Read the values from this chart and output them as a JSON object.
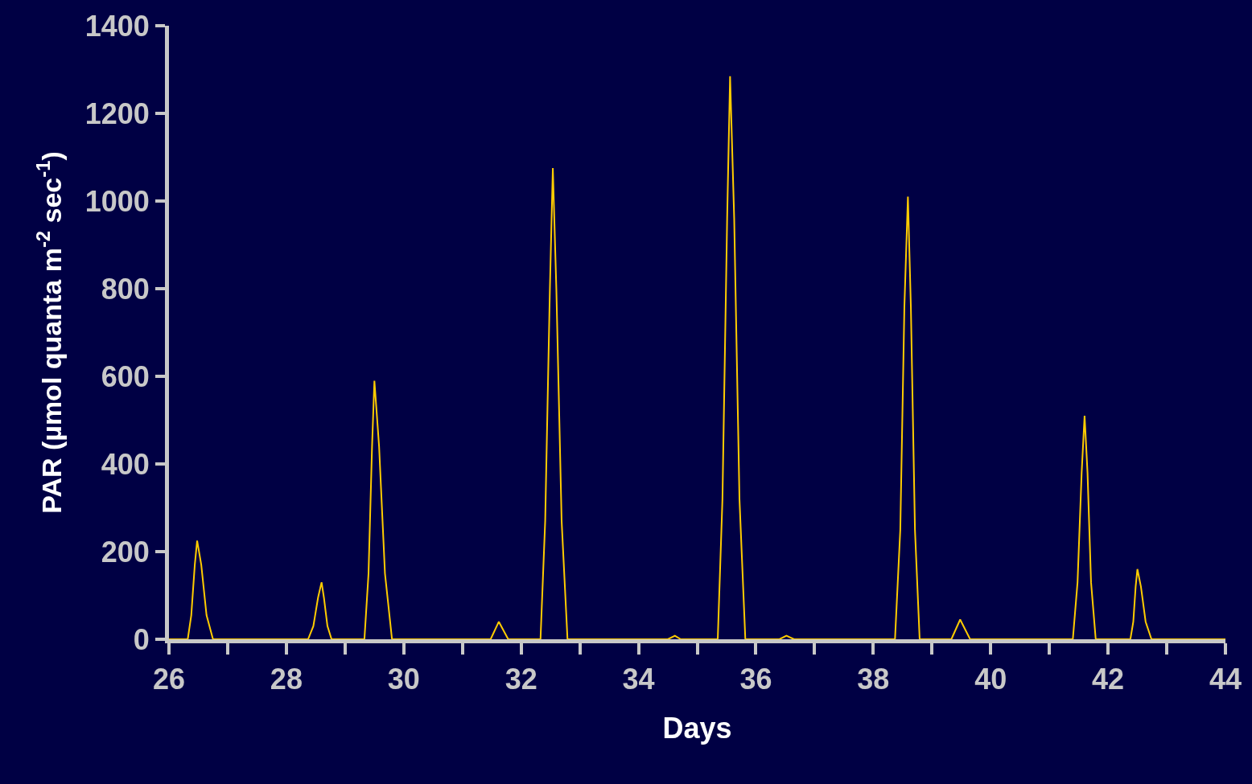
{
  "chart_data": {
    "type": "line",
    "xlabel": "Days",
    "ylabel": "PAR (µmol quanta m$^{-2}$ sec$^{-1}$)",
    "xlim": [
      26,
      44
    ],
    "ylim": [
      0,
      1400
    ],
    "xticks": [
      26,
      {
        "value": 27,
        "label": null
      },
      28,
      {
        "value": 29,
        "label": null
      },
      30,
      {
        "value": 31,
        "label": null
      },
      32,
      {
        "value": 33,
        "label": null
      },
      34,
      {
        "value": 35,
        "label": null
      },
      36,
      {
        "value": 37,
        "label": null
      },
      38,
      {
        "value": 39,
        "label": null
      },
      40,
      {
        "value": 41,
        "label": null
      },
      42,
      {
        "value": 43,
        "label": null
      },
      44
    ],
    "yticks": [
      0,
      200,
      400,
      600,
      800,
      1000,
      1200,
      1400
    ],
    "grid": false,
    "legend": false,
    "marker": "none",
    "line_style": "solid",
    "series": [
      {
        "color": "#ffcc00",
        "x": [
          26,
          26.32,
          26.38,
          26.44,
          26.48,
          26.55,
          26.64,
          26.75,
          28.37,
          28.46,
          28.54,
          28.6,
          28.64,
          28.7,
          28.77,
          29.33,
          29.4,
          29.46,
          29.5,
          29.58,
          29.68,
          29.8,
          31.48,
          31.62,
          31.78,
          32.33,
          32.41,
          32.49,
          32.54,
          32.6,
          32.69,
          32.79,
          34.5,
          34.62,
          34.72,
          35.35,
          35.43,
          35.51,
          35.56,
          35.63,
          35.72,
          35.82,
          36.4,
          36.52,
          36.65,
          38.37,
          38.46,
          38.53,
          38.59,
          38.64,
          38.71,
          38.79,
          39.33,
          39.48,
          39.65,
          41.4,
          41.48,
          41.55,
          41.6,
          41.65,
          41.71,
          41.79,
          42.38,
          42.43,
          42.47,
          42.5,
          42.56,
          42.64,
          42.74,
          44
        ],
        "values": [
          0,
          0,
          55,
          170,
          225,
          170,
          55,
          0,
          0,
          30,
          95,
          130,
          95,
          30,
          0,
          0,
          150,
          440,
          590,
          440,
          150,
          0,
          0,
          40,
          0,
          0,
          270,
          800,
          1075,
          800,
          270,
          0,
          0,
          8,
          0,
          0,
          320,
          960,
          1285,
          960,
          320,
          0,
          0,
          8,
          0,
          0,
          250,
          760,
          1010,
          760,
          250,
          0,
          0,
          45,
          0,
          0,
          130,
          380,
          510,
          380,
          130,
          0,
          0,
          40,
          120,
          160,
          120,
          40,
          0,
          0
        ]
      }
    ]
  }
}
